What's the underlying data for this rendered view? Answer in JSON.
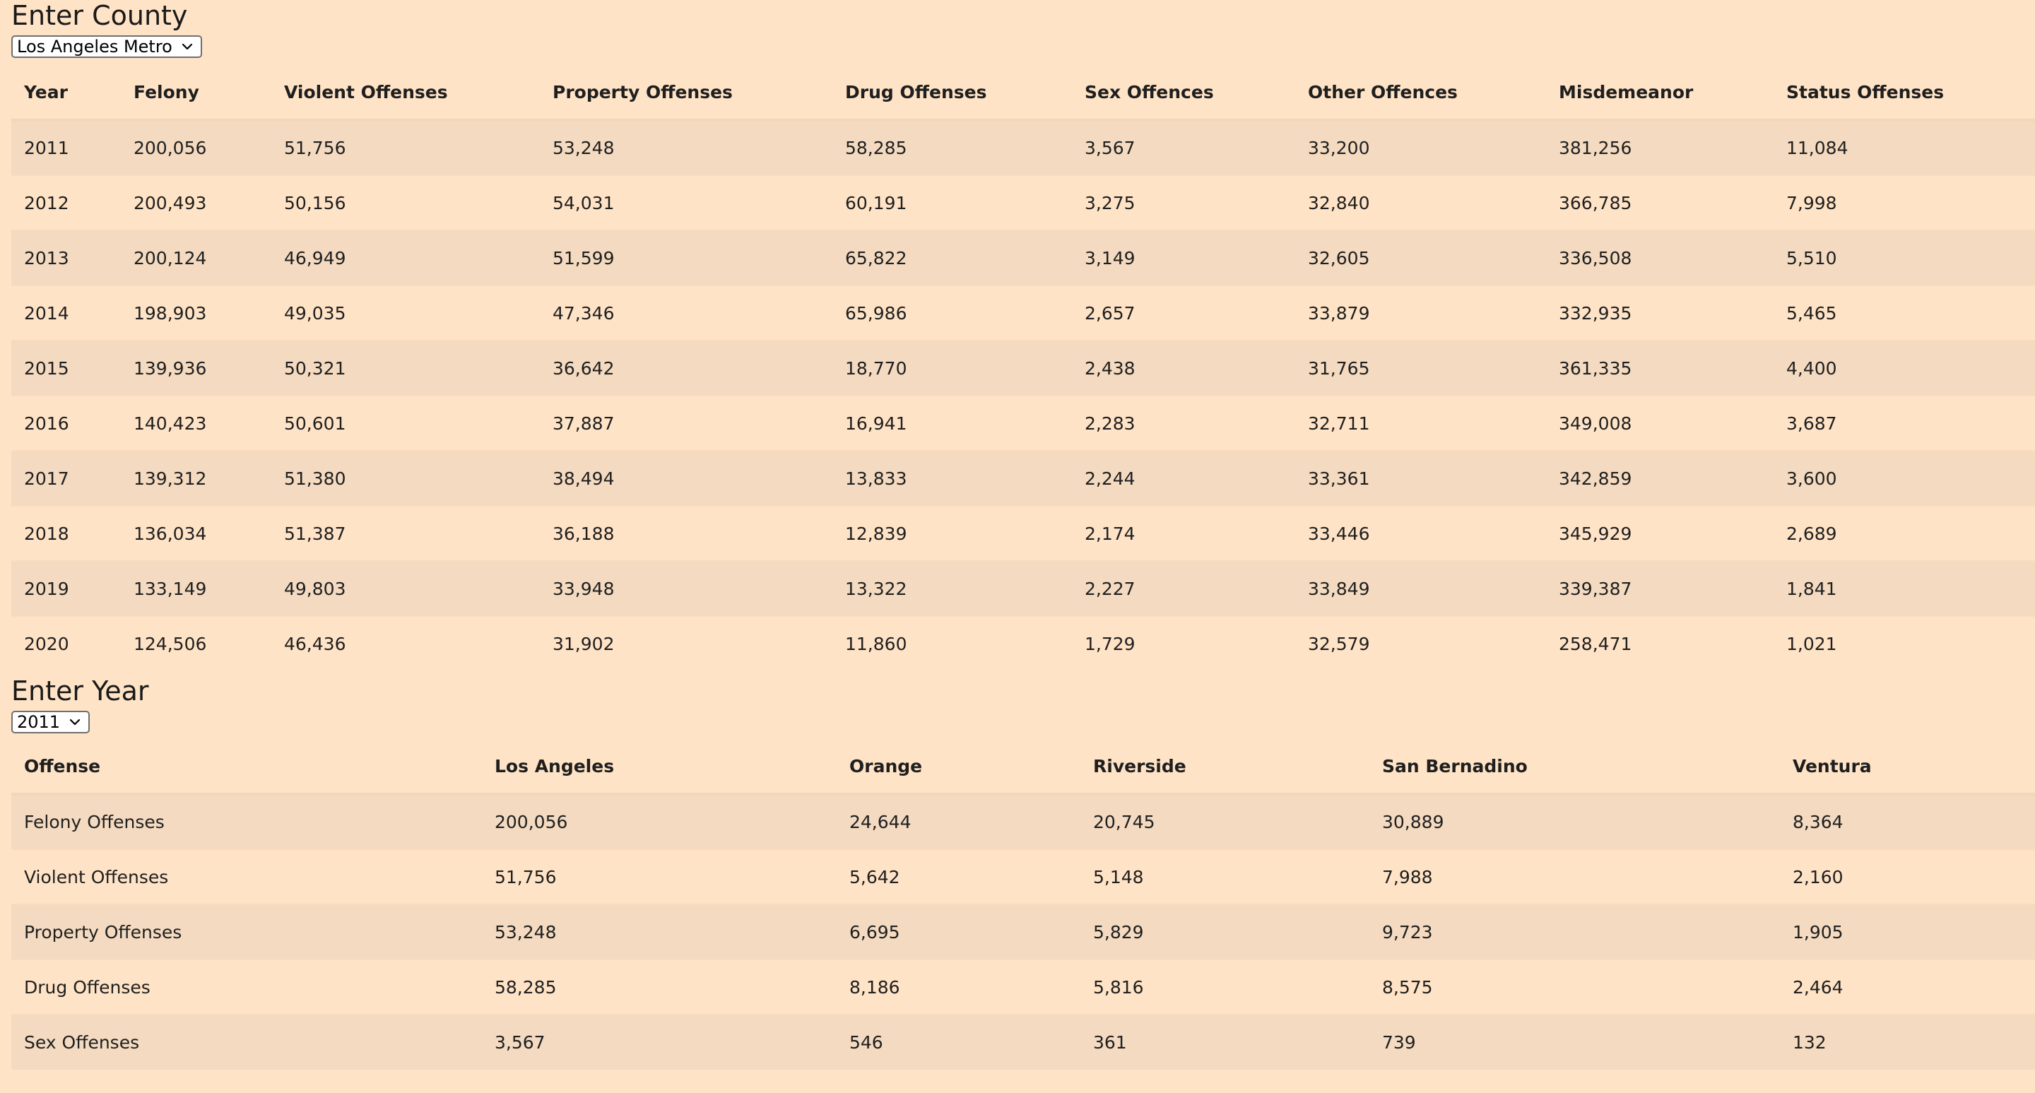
{
  "county_section": {
    "heading": "Enter County",
    "select_value": "Los Angeles Metro",
    "columns": [
      "Year",
      "Felony",
      "Violent Offenses",
      "Property Offenses",
      "Drug Offenses",
      "Sex Offences",
      "Other Offences",
      "Misdemeanor",
      "Status Offenses"
    ],
    "rows": [
      [
        "2011",
        "200,056",
        "51,756",
        "53,248",
        "58,285",
        "3,567",
        "33,200",
        "381,256",
        "11,084"
      ],
      [
        "2012",
        "200,493",
        "50,156",
        "54,031",
        "60,191",
        "3,275",
        "32,840",
        "366,785",
        "7,998"
      ],
      [
        "2013",
        "200,124",
        "46,949",
        "51,599",
        "65,822",
        "3,149",
        "32,605",
        "336,508",
        "5,510"
      ],
      [
        "2014",
        "198,903",
        "49,035",
        "47,346",
        "65,986",
        "2,657",
        "33,879",
        "332,935",
        "5,465"
      ],
      [
        "2015",
        "139,936",
        "50,321",
        "36,642",
        "18,770",
        "2,438",
        "31,765",
        "361,335",
        "4,400"
      ],
      [
        "2016",
        "140,423",
        "50,601",
        "37,887",
        "16,941",
        "2,283",
        "32,711",
        "349,008",
        "3,687"
      ],
      [
        "2017",
        "139,312",
        "51,380",
        "38,494",
        "13,833",
        "2,244",
        "33,361",
        "342,859",
        "3,600"
      ],
      [
        "2018",
        "136,034",
        "51,387",
        "36,188",
        "12,839",
        "2,174",
        "33,446",
        "345,929",
        "2,689"
      ],
      [
        "2019",
        "133,149",
        "49,803",
        "33,948",
        "13,322",
        "2,227",
        "33,849",
        "339,387",
        "1,841"
      ],
      [
        "2020",
        "124,506",
        "46,436",
        "31,902",
        "11,860",
        "1,729",
        "32,579",
        "258,471",
        "1,021"
      ]
    ]
  },
  "year_section": {
    "heading": "Enter Year",
    "select_value": "2011",
    "columns": [
      "Offense",
      "Los Angeles",
      "Orange",
      "Riverside",
      "San Bernadino",
      "Ventura"
    ],
    "rows": [
      [
        "Felony Offenses",
        "200,056",
        "24,644",
        "20,745",
        "30,889",
        "8,364"
      ],
      [
        "Violent Offenses",
        "51,756",
        "5,642",
        "5,148",
        "7,988",
        "2,160"
      ],
      [
        "Property Offenses",
        "53,248",
        "6,695",
        "5,829",
        "9,723",
        "1,905"
      ],
      [
        "Drug Offenses",
        "58,285",
        "8,186",
        "5,816",
        "8,575",
        "2,464"
      ],
      [
        "Sex Offenses",
        "3,567",
        "546",
        "361",
        "739",
        "132"
      ]
    ]
  },
  "icons": {
    "select_arrow": "chevron-down-icon"
  },
  "colors": {
    "background": "#ffe3c6",
    "row_stripe": "#f3dac0"
  }
}
